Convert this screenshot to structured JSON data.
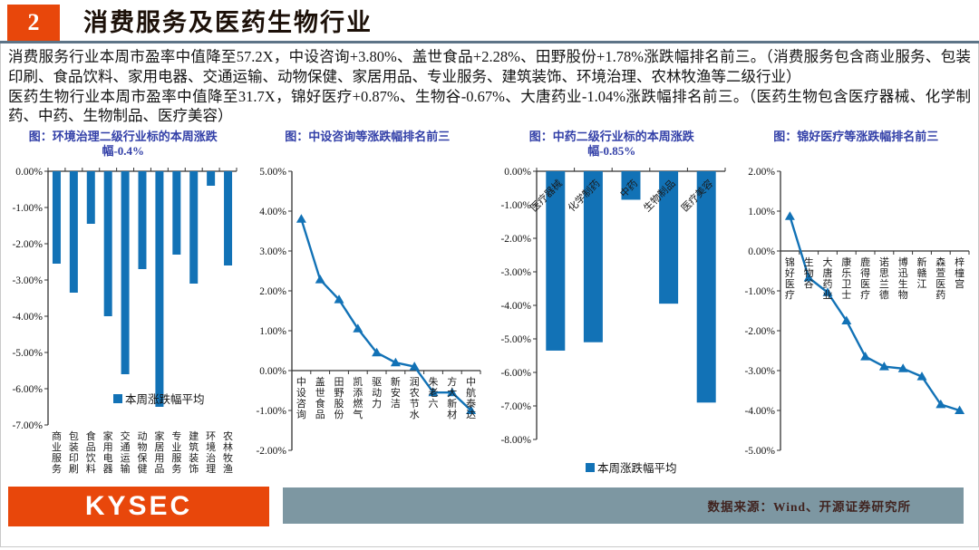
{
  "header": {
    "page_number": "2",
    "title": "消费服务及医药生物行业"
  },
  "paragraphs": [
    "消费服务行业本周市盈率中值降至57.2X，中设咨询+3.80%、盖世食品+2.28%、田野股份+1.78%涨跌幅排名前三。（消费服务包含商业服务、包装印刷、食品饮料、家用电器、交通运输、动物保健、家居用品、专业服务、建筑装饰、环境治理、农林牧渔等二级行业）",
    "医药生物行业本周市盈率中值降至31.7X，锦好医疗+0.87%、生物谷-0.67%、大唐药业-1.04%涨跌幅排名前三。（医药生物包含医疗器械、化学制药、中药、生物制品、医疗美容）"
  ],
  "chart_data": [
    {
      "type": "bar",
      "title": "图：环境治理二级行业标的本周涨跌幅-0.4%",
      "categories": [
        "商业服务",
        "包装印刷",
        "食品饮料",
        "家用电器",
        "交通运输",
        "动物保健",
        "家居用品",
        "专业服务",
        "建筑装饰",
        "环境治理",
        "农林牧渔"
      ],
      "values": [
        -2.55,
        -3.35,
        -1.45,
        -4.0,
        -5.6,
        -2.7,
        -6.5,
        -2.3,
        -3.1,
        -0.4,
        -2.6
      ],
      "ylim": [
        -7,
        0
      ],
      "ytick_step": 1,
      "grid": false,
      "legend": "本周涨跌幅平均",
      "legend_pos": "inside-bottom",
      "color": "#1272b6",
      "xlabel": "",
      "ylabel": ""
    },
    {
      "type": "line",
      "title": "图：中设咨询等涨跌幅排名前三",
      "categories": [
        "中设咨询",
        "盖世食品",
        "田野股份",
        "凯添燃气",
        "驱动力",
        "新安洁",
        "润农节水",
        "朱老六",
        "方大新材",
        "中航泰达"
      ],
      "values": [
        3.8,
        2.28,
        1.78,
        1.05,
        0.45,
        0.2,
        0.1,
        -0.55,
        -0.55,
        -1.0
      ],
      "ylim": [
        -2,
        5
      ],
      "ytick_step": 1,
      "grid": false,
      "legend": null,
      "marker": "triangle",
      "color": "#1272b6",
      "xlabel": "",
      "ylabel": ""
    },
    {
      "type": "bar",
      "title": "图：中药二级行业标的本周涨跌幅-0.85%",
      "categories": [
        "医疗器械",
        "化学制药",
        "中药",
        "生物制品",
        "医疗美容"
      ],
      "values": [
        -5.35,
        -5.1,
        -0.85,
        -3.95,
        -6.9
      ],
      "ylim": [
        -8,
        0
      ],
      "ytick_step": 1,
      "grid": false,
      "legend": "本周涨跌幅平均",
      "legend_pos": "below",
      "color": "#1272b6",
      "xlabel": "",
      "ylabel": ""
    },
    {
      "type": "line",
      "title": "图：锦好医疗等涨跌幅排名前三",
      "categories": [
        "锦好医疗",
        "生物谷",
        "大唐药业",
        "康乐卫士",
        "鹿得医疗",
        "诺思兰德",
        "博迅生物",
        "新赣江",
        "森萱医药",
        "梓橦宫"
      ],
      "values": [
        0.87,
        -0.67,
        -1.04,
        -1.75,
        -2.65,
        -2.9,
        -2.95,
        -3.15,
        -3.85,
        -4.0
      ],
      "ylim": [
        -5,
        2
      ],
      "ytick_step": 1,
      "grid": false,
      "legend": null,
      "marker": "triangle",
      "color": "#1272b6",
      "xlabel": "",
      "ylabel": ""
    }
  ],
  "footer": {
    "logo": "KYSEC",
    "source": "数据来源：Wind、开源证券研究所"
  },
  "colors": {
    "accent_orange": "#e8470b",
    "chart_blue": "#1272b6",
    "title_blue": "#3340a8",
    "footer_band": "#7d97a2",
    "header_rule": "#5d7487"
  }
}
